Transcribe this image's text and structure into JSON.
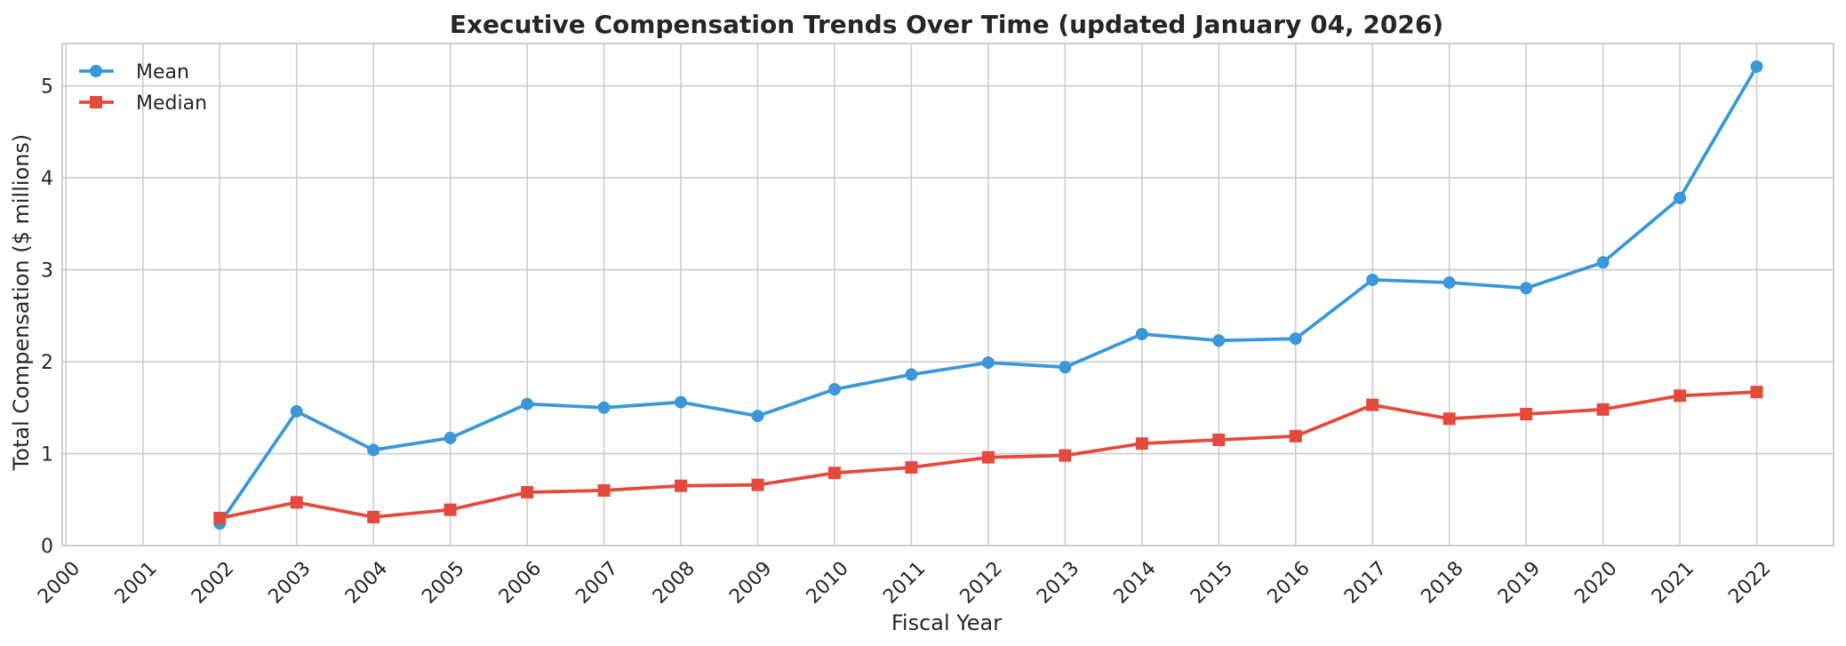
{
  "chart_data": {
    "type": "line",
    "title": "Executive Compensation Trends Over Time (updated January 04, 2026)",
    "xlabel": "Fiscal Year",
    "ylabel": "Total Compensation ($ millions)",
    "x": [
      2000,
      2001,
      2002,
      2003,
      2004,
      2005,
      2006,
      2007,
      2008,
      2009,
      2010,
      2011,
      2012,
      2013,
      2014,
      2015,
      2016,
      2017,
      2018,
      2019,
      2020,
      2021,
      2022
    ],
    "x_tick_labels": [
      "2000",
      "2001",
      "2002",
      "2003",
      "2004",
      "2005",
      "2006",
      "2007",
      "2008",
      "2009",
      "2010",
      "2011",
      "2012",
      "2013",
      "2014",
      "2015",
      "2016",
      "2017",
      "2018",
      "2019",
      "2020",
      "2021",
      "2022"
    ],
    "xlim": [
      1999.95,
      2023
    ],
    "ylim": [
      0,
      5.46
    ],
    "y_ticks": [
      0,
      1,
      2,
      3,
      4,
      5
    ],
    "y_tick_labels": [
      "0",
      "1",
      "2",
      "3",
      "4",
      "5"
    ],
    "grid": true,
    "legend": "top-left",
    "series": [
      {
        "name": "Mean",
        "color": "#3a98d9",
        "marker": "circle",
        "x": [
          2002,
          2003,
          2004,
          2005,
          2006,
          2007,
          2008,
          2009,
          2010,
          2011,
          2012,
          2013,
          2014,
          2015,
          2016,
          2017,
          2018,
          2019,
          2020,
          2021,
          2022
        ],
        "values": [
          0.24,
          1.46,
          1.04,
          1.17,
          1.54,
          1.5,
          1.56,
          1.41,
          1.7,
          1.86,
          1.99,
          1.94,
          2.3,
          2.23,
          2.25,
          2.89,
          2.86,
          2.8,
          3.08,
          3.78,
          5.21
        ]
      },
      {
        "name": "Median",
        "color": "#e34a3c",
        "marker": "square",
        "x": [
          2002,
          2003,
          2004,
          2005,
          2006,
          2007,
          2008,
          2009,
          2010,
          2011,
          2012,
          2013,
          2014,
          2015,
          2016,
          2017,
          2018,
          2019,
          2020,
          2021,
          2022
        ],
        "values": [
          0.3,
          0.47,
          0.31,
          0.39,
          0.58,
          0.6,
          0.65,
          0.66,
          0.79,
          0.85,
          0.96,
          0.98,
          1.11,
          1.15,
          1.19,
          1.53,
          1.38,
          1.43,
          1.48,
          1.63,
          1.67
        ]
      }
    ]
  }
}
